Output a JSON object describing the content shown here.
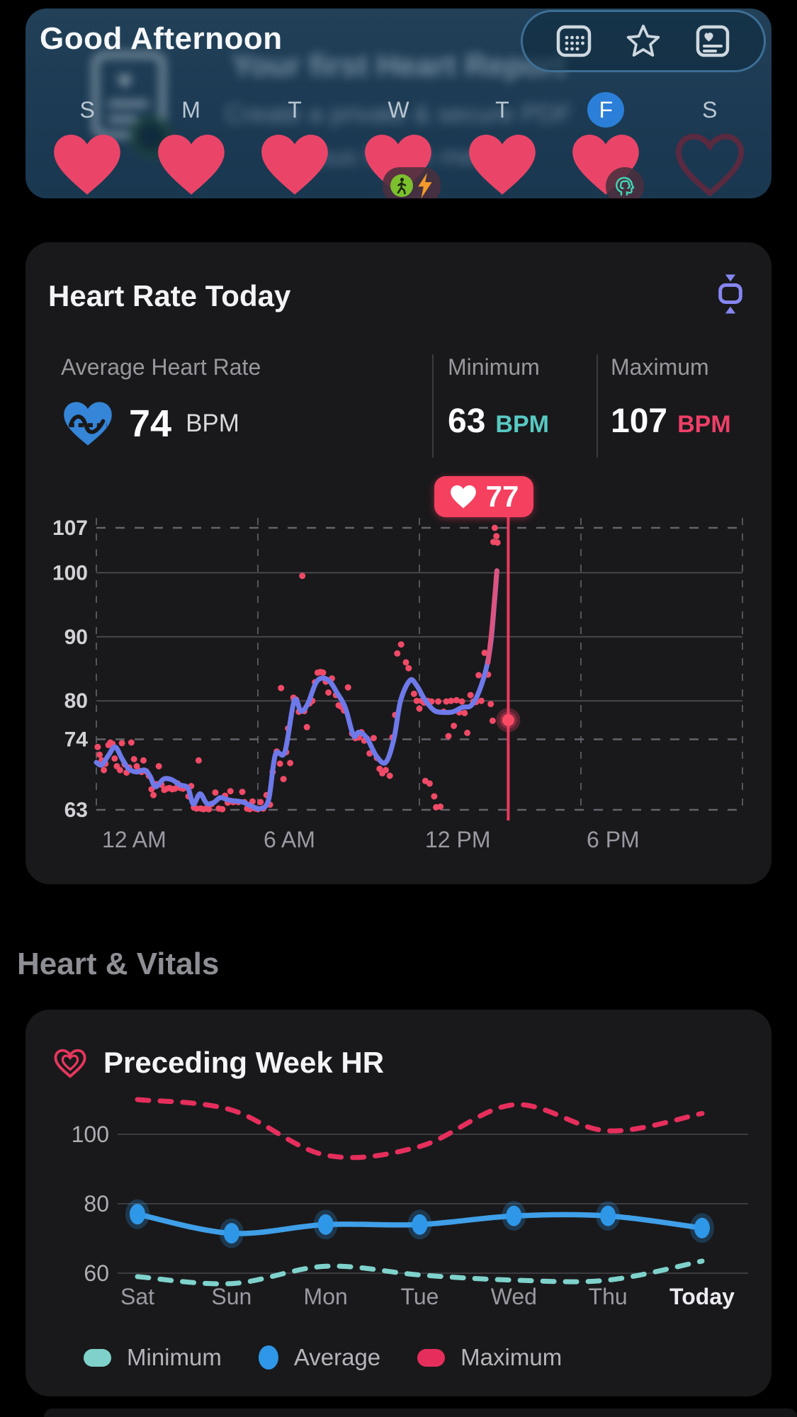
{
  "colors": {
    "heart_fill": "#ea4568",
    "heart_outline": "#5a2a40",
    "day_selected": "#2b7fd8",
    "line_purple": "#6e79ea",
    "scatter_pink": "#f04a67",
    "tooltip_bg": "#f5405f",
    "avg_icon_blue": "#3585d8",
    "expand_purple": "#8686f2",
    "teal": "#7fd2cc",
    "blue": "#2f97e8",
    "pink": "#e62e5c",
    "unit_teal": "#58c9c3",
    "unit_pink": "#ee3f68",
    "card_bg": "#19191b",
    "banner_bg": "#1c3a53"
  },
  "header": {
    "greeting": "Good Afternoon",
    "promo": {
      "title": "Your first Heart Report",
      "line2": "Create a private & secure PDF",
      "line3": "various health metrics"
    },
    "toolbar": {
      "icons": [
        {
          "name": "calendar-grid-icon"
        },
        {
          "name": "star-icon"
        },
        {
          "name": "heart-report-icon"
        }
      ]
    },
    "week_strip": {
      "days": [
        {
          "label": "S",
          "filled": true
        },
        {
          "label": "M",
          "filled": true
        },
        {
          "label": "T",
          "filled": true
        },
        {
          "label": "W",
          "filled": true,
          "badges": [
            "walk",
            "bolt"
          ]
        },
        {
          "label": "T",
          "filled": true
        },
        {
          "label": "F",
          "filled": true,
          "selected": true,
          "badges": [
            "mind"
          ]
        },
        {
          "label": "S",
          "filled": false
        }
      ]
    }
  },
  "heart_rate_today": {
    "title": "Heart Rate Today",
    "stats": {
      "average": {
        "label": "Average Heart Rate",
        "value": "74",
        "unit": "BPM"
      },
      "minimum": {
        "label": "Minimum",
        "value": "63",
        "unit": "BPM"
      },
      "maximum": {
        "label": "Maximum",
        "value": "107",
        "unit": "BPM"
      }
    },
    "tooltip": {
      "value": "77"
    },
    "chart_data": {
      "type": "line+scatter",
      "x_unit": "hour_of_day",
      "xlim": [
        0,
        24
      ],
      "xticks": [
        {
          "value": 0,
          "label": "12 AM"
        },
        {
          "value": 6,
          "label": "6 AM"
        },
        {
          "value": 12,
          "label": "12 PM"
        },
        {
          "value": 18,
          "label": "6 PM"
        },
        {
          "value": 24,
          "label": ""
        }
      ],
      "yticks": [
        {
          "value": 107,
          "dashed": true
        },
        {
          "value": 100,
          "dashed": false
        },
        {
          "value": 90,
          "dashed": false
        },
        {
          "value": 80,
          "dashed": false
        },
        {
          "value": 74,
          "dashed": true
        },
        {
          "value": 63,
          "dashed": true
        }
      ],
      "average_line": [
        [
          0,
          70.4
        ],
        [
          0.2,
          70.0
        ],
        [
          0.45,
          71.5
        ],
        [
          0.7,
          72.8
        ],
        [
          0.95,
          71.0
        ],
        [
          1.2,
          69.4
        ],
        [
          1.5,
          68.9
        ],
        [
          1.8,
          69.2
        ],
        [
          2.0,
          68.2
        ],
        [
          2.2,
          66.6
        ],
        [
          2.5,
          67.8
        ],
        [
          2.8,
          67.7
        ],
        [
          3.1,
          66.9
        ],
        [
          3.4,
          66.4
        ],
        [
          3.6,
          63.9
        ],
        [
          3.85,
          65.5
        ],
        [
          4.1,
          64.0
        ],
        [
          4.35,
          64.1
        ],
        [
          4.6,
          64.9
        ],
        [
          4.85,
          64.6
        ],
        [
          5.1,
          64.4
        ],
        [
          5.45,
          64.2
        ],
        [
          5.8,
          63.5
        ],
        [
          6.1,
          63.2
        ],
        [
          6.4,
          64.6
        ],
        [
          6.65,
          71.6
        ],
        [
          7.0,
          72.0
        ],
        [
          7.35,
          80.0
        ],
        [
          7.6,
          78.4
        ],
        [
          7.85,
          79.5
        ],
        [
          8.2,
          83.1
        ],
        [
          8.6,
          83.3
        ],
        [
          8.95,
          81.2
        ],
        [
          9.25,
          78.9
        ],
        [
          9.55,
          74.6
        ],
        [
          9.75,
          75.1
        ],
        [
          10.05,
          74.2
        ],
        [
          10.4,
          71.4
        ],
        [
          10.75,
          70.4
        ],
        [
          11.05,
          74.0
        ],
        [
          11.3,
          80.0
        ],
        [
          11.65,
          83.2
        ],
        [
          11.9,
          82.4
        ],
        [
          12.2,
          80.2
        ],
        [
          12.55,
          78.5
        ],
        [
          12.9,
          78.2
        ],
        [
          13.25,
          78.3
        ],
        [
          13.6,
          79.0
        ],
        [
          13.9,
          79.2
        ],
        [
          14.15,
          80.8
        ],
        [
          14.45,
          84.5
        ],
        [
          14.65,
          89.0
        ],
        [
          14.8,
          96.0
        ],
        [
          14.88,
          100.3
        ]
      ],
      "spike_tip": [
        [
          14.55,
          86.0
        ],
        [
          14.7,
          91.5
        ],
        [
          14.88,
          100.3
        ]
      ],
      "scatter": [
        [
          0.05,
          72.8
        ],
        [
          0.12,
          71.6
        ],
        [
          0.2,
          70.7
        ],
        [
          0.28,
          69.2
        ],
        [
          0.34,
          70.2
        ],
        [
          0.45,
          73.1
        ],
        [
          0.52,
          73.5
        ],
        [
          0.6,
          73.3
        ],
        [
          0.68,
          71.0
        ],
        [
          0.76,
          69.8
        ],
        [
          0.88,
          69.2
        ],
        [
          0.95,
          73.4
        ],
        [
          1.05,
          70.1
        ],
        [
          1.12,
          68.8
        ],
        [
          1.22,
          69.6
        ],
        [
          1.3,
          73.5
        ],
        [
          1.4,
          70.9
        ],
        [
          1.5,
          69.8
        ],
        [
          1.58,
          69.1
        ],
        [
          1.68,
          68.9
        ],
        [
          1.75,
          70.7
        ],
        [
          1.85,
          69.0
        ],
        [
          1.95,
          68.3
        ],
        [
          2.05,
          66.2
        ],
        [
          2.12,
          65.3
        ],
        [
          2.22,
          67.0
        ],
        [
          2.32,
          69.8
        ],
        [
          2.42,
          66.9
        ],
        [
          2.52,
          66.1
        ],
        [
          2.62,
          66.3
        ],
        [
          2.72,
          66.4
        ],
        [
          2.82,
          66.2
        ],
        [
          2.92,
          66.3
        ],
        [
          3.02,
          67.1
        ],
        [
          3.12,
          66.4
        ],
        [
          3.22,
          66.3
        ],
        [
          3.32,
          66.5
        ],
        [
          3.42,
          65.1
        ],
        [
          3.52,
          66.7
        ],
        [
          3.62,
          63.4
        ],
        [
          3.72,
          63.2
        ],
        [
          3.8,
          70.7
        ],
        [
          3.88,
          63.2
        ],
        [
          3.98,
          63.1
        ],
        [
          4.08,
          63.2
        ],
        [
          4.18,
          63.1
        ],
        [
          4.28,
          63.9
        ],
        [
          4.42,
          65.7
        ],
        [
          4.55,
          63.2
        ],
        [
          4.68,
          63.1
        ],
        [
          4.78,
          65.2
        ],
        [
          4.88,
          64.1
        ],
        [
          4.98,
          65.9
        ],
        [
          5.08,
          64.2
        ],
        [
          5.18,
          64.3
        ],
        [
          5.28,
          64.2
        ],
        [
          5.42,
          65.8
        ],
        [
          5.5,
          64.2
        ],
        [
          5.6,
          63.2
        ],
        [
          5.7,
          63.1
        ],
        [
          5.8,
          64.3
        ],
        [
          5.9,
          63.2
        ],
        [
          6.0,
          63.1
        ],
        [
          6.1,
          64.2
        ],
        [
          6.2,
          63.2
        ],
        [
          6.32,
          65.3
        ],
        [
          6.45,
          63.8
        ],
        [
          6.55,
          68.9
        ],
        [
          6.7,
          72.1
        ],
        [
          6.82,
          70.2
        ],
        [
          6.86,
          82.0
        ],
        [
          6.95,
          67.8
        ],
        [
          7.05,
          72.0
        ],
        [
          7.12,
          75.7
        ],
        [
          7.2,
          70.3
        ],
        [
          7.32,
          80.5
        ],
        [
          7.42,
          80.2
        ],
        [
          7.52,
          78.3
        ],
        [
          7.65,
          99.5
        ],
        [
          7.72,
          78.4
        ],
        [
          7.82,
          75.9
        ],
        [
          7.92,
          79.6
        ],
        [
          8.02,
          80.0
        ],
        [
          8.12,
          82.9
        ],
        [
          8.22,
          84.4
        ],
        [
          8.32,
          84.5
        ],
        [
          8.42,
          84.4
        ],
        [
          8.52,
          83.0
        ],
        [
          8.62,
          81.3
        ],
        [
          8.75,
          83.5
        ],
        [
          8.9,
          80.9
        ],
        [
          9.0,
          79.3
        ],
        [
          9.1,
          79.1
        ],
        [
          9.2,
          78.5
        ],
        [
          9.35,
          82.1
        ],
        [
          9.5,
          74.9
        ],
        [
          9.62,
          74.2
        ],
        [
          9.75,
          74.3
        ],
        [
          9.85,
          75.1
        ],
        [
          9.95,
          73.8
        ],
        [
          10.05,
          74.1
        ],
        [
          10.15,
          71.8
        ],
        [
          10.3,
          74.2
        ],
        [
          10.42,
          71.1
        ],
        [
          10.52,
          69.4
        ],
        [
          10.62,
          68.7
        ],
        [
          10.75,
          69.2
        ],
        [
          10.9,
          68.3
        ],
        [
          11.0,
          74.3
        ],
        [
          11.1,
          77.8
        ],
        [
          11.18,
          87.4
        ],
        [
          11.32,
          88.8
        ],
        [
          11.5,
          86.0
        ],
        [
          11.6,
          85.1
        ],
        [
          11.8,
          81.1
        ],
        [
          11.9,
          80.0
        ],
        [
          12.0,
          78.8
        ],
        [
          12.08,
          80.0
        ],
        [
          12.18,
          79.7
        ],
        [
          12.22,
          67.5
        ],
        [
          12.3,
          80.0
        ],
        [
          12.38,
          67.1
        ],
        [
          12.45,
          79.9
        ],
        [
          12.55,
          65.1
        ],
        [
          12.62,
          63.4
        ],
        [
          12.7,
          79.9
        ],
        [
          12.78,
          63.5
        ],
        [
          12.9,
          78.3
        ],
        [
          13.0,
          79.9
        ],
        [
          13.08,
          74.5
        ],
        [
          13.18,
          80.0
        ],
        [
          13.28,
          76.1
        ],
        [
          13.38,
          80.1
        ],
        [
          13.48,
          78.2
        ],
        [
          13.58,
          79.9
        ],
        [
          13.68,
          78.1
        ],
        [
          13.78,
          75.0
        ],
        [
          13.9,
          80.9
        ],
        [
          14.0,
          79.9
        ],
        [
          14.1,
          79.8
        ],
        [
          14.2,
          84.0
        ],
        [
          14.3,
          80.0
        ],
        [
          14.42,
          87.5
        ],
        [
          14.55,
          84.1
        ],
        [
          14.65,
          79.5
        ],
        [
          14.72,
          76.9
        ],
        [
          14.75,
          104.8
        ],
        [
          14.8,
          107.0
        ],
        [
          14.86,
          105.7
        ],
        [
          14.9,
          104.7
        ]
      ],
      "selection": {
        "hour": 15.3,
        "bpm": 77,
        "label": "77"
      }
    }
  },
  "section": {
    "title": "Heart & Vitals"
  },
  "preceding_week": {
    "title": "Preceding Week HR",
    "chart_data": {
      "type": "line",
      "categories": [
        "Sat",
        "Sun",
        "Mon",
        "Tue",
        "Wed",
        "Thu",
        "Today"
      ],
      "yticks": [
        100,
        80,
        60
      ],
      "ylim": [
        52,
        114
      ],
      "series": [
        {
          "name": "Minimum",
          "style": "dashed",
          "color": "#7fd2cc",
          "values": [
            59,
            57,
            62,
            59.5,
            58,
            58,
            63.5
          ]
        },
        {
          "name": "Average",
          "style": "solid-dots",
          "color": "#3f9fe8",
          "values": [
            77,
            71.5,
            74,
            74,
            76.5,
            76.5,
            73
          ]
        },
        {
          "name": "Maximum",
          "style": "dashed",
          "color": "#e62e5c",
          "values": [
            110,
            107,
            94,
            96.5,
            108.5,
            101,
            106
          ]
        }
      ],
      "legend": [
        {
          "label": "Minimum",
          "swatch": "teal-dash"
        },
        {
          "label": "Average",
          "swatch": "blue-dot"
        },
        {
          "label": "Maximum",
          "swatch": "pink-dash"
        }
      ],
      "legend_position": "bottom"
    }
  }
}
